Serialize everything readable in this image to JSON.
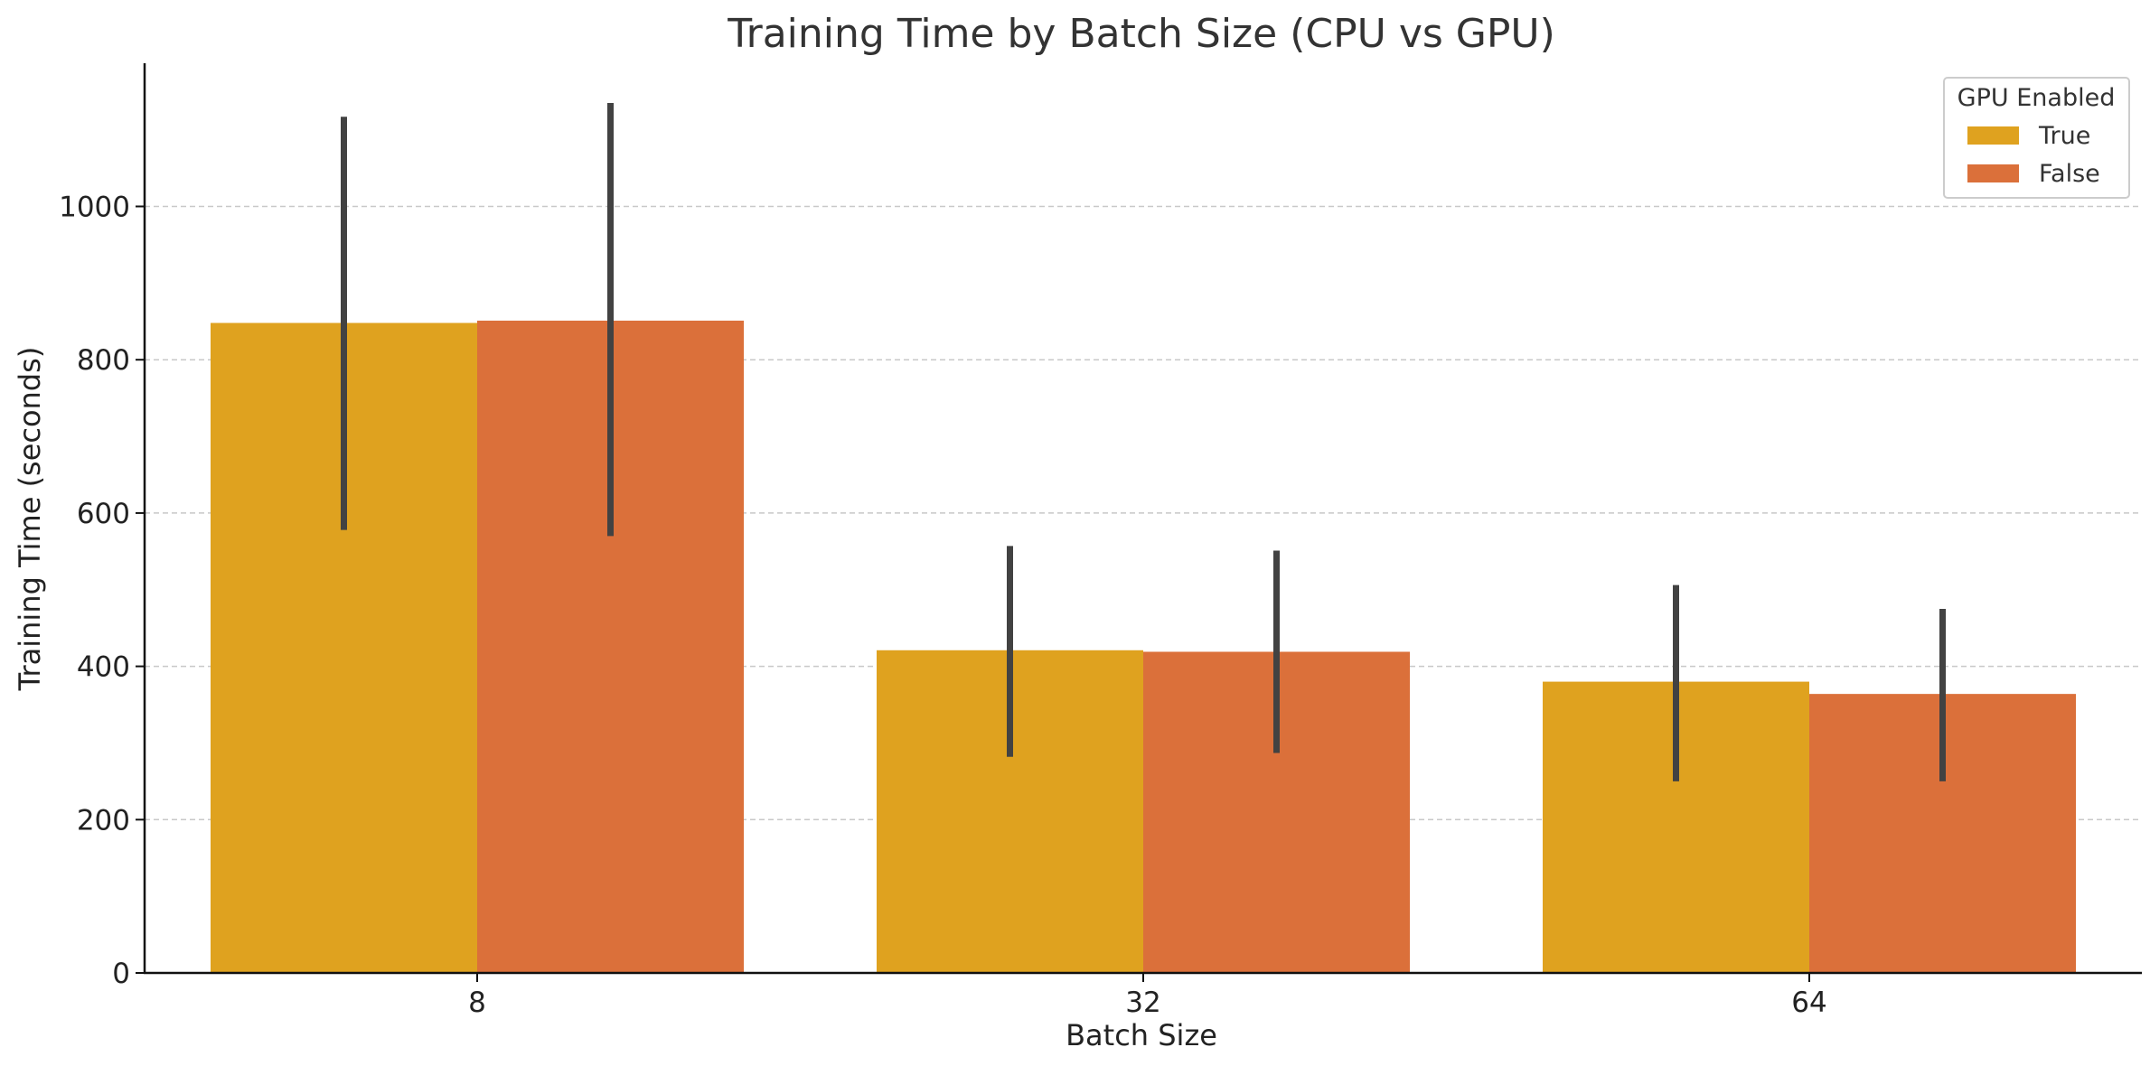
{
  "chart_data": {
    "type": "bar",
    "title": "Training Time by Batch Size (CPU vs GPU)",
    "xlabel": "Batch Size",
    "ylabel": "Training Time (seconds)",
    "categories": [
      "8",
      "32",
      "64"
    ],
    "ylim": [
      0,
      1180
    ],
    "yticks": [
      0,
      200,
      400,
      600,
      800,
      1000
    ],
    "grid": "horizontal dashed",
    "legend": {
      "title": "GPU Enabled",
      "placement": "top-right"
    },
    "series": [
      {
        "name": "True",
        "color": "#DFA21F",
        "values": [
          848,
          421,
          380
        ],
        "error_low": [
          578,
          282,
          250
        ],
        "error_high": [
          1117,
          557,
          506
        ]
      },
      {
        "name": "False",
        "color": "#DB703A",
        "values": [
          851,
          419,
          364
        ],
        "error_low": [
          570,
          287,
          250
        ],
        "error_high": [
          1135,
          551,
          475
        ]
      }
    ],
    "error_bar_color": "#424242"
  }
}
